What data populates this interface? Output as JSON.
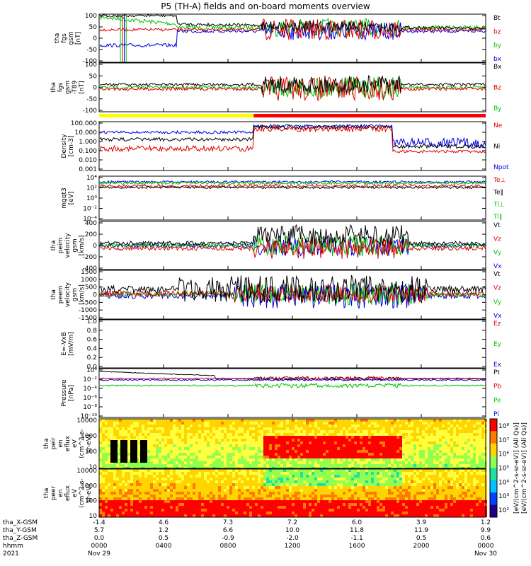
{
  "header": {
    "title": "P5 (TH-A) fields and on-board moments overview"
  },
  "chart_data": [
    {
      "type": "line",
      "id": "fgs",
      "ylabel_lines": [
        "tha",
        "fgs",
        "gsm",
        "[nT]"
      ],
      "yticks": [
        "100",
        "50",
        "0",
        "-50",
        "-100"
      ],
      "ylim": [
        -100,
        100
      ],
      "series": [
        {
          "name": "Bt",
          "color": "#000000"
        },
        {
          "name": "bz",
          "color": "#e00000"
        },
        {
          "name": "by",
          "color": "#00c000"
        },
        {
          "name": "bx",
          "color": "#0000e0"
        }
      ]
    },
    {
      "type": "line",
      "id": "fgs_dip",
      "ylabel_lines": [
        "tha",
        "fgs",
        "gsm",
        "-T89",
        "[nT]"
      ],
      "yticks": [
        "100",
        "50",
        "0",
        "-50",
        "-100"
      ],
      "ylim": [
        -100,
        100
      ],
      "series": [
        {
          "name": "Bx",
          "color": "#000000"
        },
        {
          "name": "Bz",
          "color": "#e00000"
        },
        {
          "name": "By",
          "color": "#00c000"
        }
      ]
    },
    {
      "type": "line",
      "id": "density",
      "ylabel_lines": [
        "Density",
        "[cm-3]"
      ],
      "yticks": [
        "100.000",
        "10.000",
        "1.000",
        "0.100",
        "0.010",
        "0.001"
      ],
      "scale": "log",
      "series": [
        {
          "name": "Ne",
          "color": "#e00000"
        },
        {
          "name": "Ni",
          "color": "#000000"
        },
        {
          "name": "Npot",
          "color": "#0000e0"
        }
      ]
    },
    {
      "type": "line",
      "id": "temp",
      "ylabel_lines": [
        "mgqt3",
        "[eV]"
      ],
      "yticks": [
        "10⁴",
        "10²",
        "10⁰",
        "10⁻²",
        "10⁻⁴"
      ],
      "scale": "log",
      "series": [
        {
          "name": "Te⊥",
          "color": "#e00000"
        },
        {
          "name": "Te∥",
          "color": "#000000"
        },
        {
          "name": "Ti⊥",
          "color": "#00c000"
        },
        {
          "name": "Ti∥",
          "color": "#00c000"
        }
      ]
    },
    {
      "type": "line",
      "id": "peim",
      "ylabel_lines": [
        "tha",
        "peim",
        "velocity",
        "gsm",
        "[km/s]"
      ],
      "yticks": [
        "400",
        "200",
        "0",
        "-200",
        "-400"
      ],
      "ylim": [
        -400,
        400
      ],
      "series": [
        {
          "name": "Vt",
          "color": "#000000"
        },
        {
          "name": "Vz",
          "color": "#e00000"
        },
        {
          "name": "Vy",
          "color": "#00c000"
        },
        {
          "name": "Vx",
          "color": "#0000e0"
        }
      ]
    },
    {
      "type": "line",
      "id": "peem",
      "ylabel_lines": [
        "tha",
        "peem",
        "velocity",
        "gsm",
        "[km/s]"
      ],
      "yticks": [
        "1500",
        "1000",
        "500",
        "0",
        "-500",
        "-1000",
        "-1500"
      ],
      "ylim": [
        -1500,
        1500
      ],
      "series": [
        {
          "name": "Vt",
          "color": "#000000"
        },
        {
          "name": "Vz",
          "color": "#e00000"
        },
        {
          "name": "Vy",
          "color": "#00c000"
        },
        {
          "name": "Vx",
          "color": "#0000e0"
        }
      ]
    },
    {
      "type": "line",
      "id": "efield",
      "ylabel_lines": [
        "E=-VxB",
        "[mV/m]"
      ],
      "yticks": [
        "1.0",
        "0.8",
        "0.6",
        "0.4",
        "0.2",
        "0.0"
      ],
      "ylim": [
        0,
        1
      ],
      "series": [
        {
          "name": "Ez",
          "color": "#e00000"
        },
        {
          "name": "Ey",
          "color": "#00c000"
        },
        {
          "name": "Ex",
          "color": "#0000e0"
        }
      ]
    },
    {
      "type": "line",
      "id": "pressure",
      "ylabel_lines": [
        "Pressure",
        "[nPa]"
      ],
      "yticks": [
        "10⁰",
        "10⁻²",
        "10⁻⁴",
        "10⁻⁶",
        "10⁻⁸",
        "10⁻¹⁰"
      ],
      "scale": "log",
      "series": [
        {
          "name": "Pt",
          "color": "#000000"
        },
        {
          "name": "Pb",
          "color": "#e00000"
        },
        {
          "name": "Pe",
          "color": "#00c000"
        },
        {
          "name": "Pi",
          "color": "#0000e0"
        }
      ]
    },
    {
      "type": "heatmap",
      "id": "peir",
      "ylabel_lines": [
        "tha",
        "peir",
        "en",
        "eflux",
        "eV",
        "(cm^2-s-",
        "sr-eV)"
      ],
      "yticks": [
        "10000",
        "1000",
        "100",
        "10"
      ],
      "scale": "log"
    },
    {
      "type": "heatmap",
      "id": "peer",
      "ylabel_lines": [
        "tha",
        "peer",
        "en",
        "eflux",
        "eV",
        "(cm^2-s-",
        "sr-eV)"
      ],
      "yticks": [
        "10000",
        "1000",
        "100",
        "10"
      ],
      "scale": "log"
    }
  ],
  "colorbar": {
    "ticks": [
      "10⁸",
      "10⁷",
      "10⁶",
      "10⁵",
      "10⁴",
      "10³",
      "10²"
    ],
    "label": "[eV/(cm^2-s-sr-eV)] (All Qs)]",
    "label2": "[eV/(cm^2-s-sr-eV)] (All Qs)]"
  },
  "footer": {
    "row_labels": [
      "tha_X-GSM",
      "tha_Y-GSM",
      "tha_Z-GSM",
      "hhmm",
      "2021"
    ],
    "columns": [
      {
        "x": "-1.4",
        "y": "5.7",
        "z": "0.0",
        "hhmm": "0000",
        "date": "Nov 29"
      },
      {
        "x": "4.6",
        "y": "1.2",
        "z": "0.5",
        "hhmm": "0400",
        "date": ""
      },
      {
        "x": "7.3",
        "y": "6.6",
        "z": "-0.9",
        "hhmm": "0800",
        "date": ""
      },
      {
        "x": "7.2",
        "y": "10.0",
        "z": "-2.0",
        "hhmm": "1200",
        "date": ""
      },
      {
        "x": "6.0",
        "y": "11.8",
        "z": "-1.1",
        "hhmm": "1600",
        "date": ""
      },
      {
        "x": "3.9",
        "y": "11.9",
        "z": "0.5",
        "hhmm": "2000",
        "date": ""
      },
      {
        "x": "1.2",
        "y": "9.9",
        "z": "0.6",
        "hhmm": "0000",
        "date": "Nov 30"
      }
    ]
  },
  "mode_bar": {
    "colors": [
      "#ffff00",
      "#ff0000"
    ]
  }
}
